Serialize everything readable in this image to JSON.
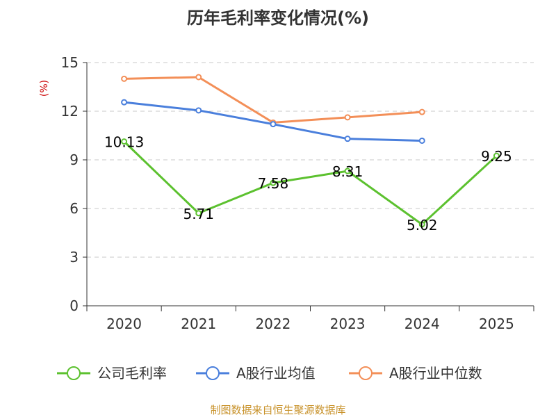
{
  "chart_data": {
    "type": "line",
    "title": "历年毛利率变化情况(%)",
    "unit_label": "(%)",
    "categories": [
      "2020",
      "2021",
      "2022",
      "2023",
      "2024",
      "2025"
    ],
    "yticks": [
      "0",
      "3",
      "6",
      "9",
      "12",
      "15"
    ],
    "ylim": [
      0,
      15
    ],
    "grid": true,
    "legend_placement": "bottom",
    "series": [
      {
        "name": "公司毛利率",
        "color": "#5cc12f",
        "values": [
          10.13,
          5.71,
          7.58,
          8.31,
          5.02,
          9.25
        ],
        "labels": [
          "10.13",
          "5.71",
          "7.58",
          "8.31",
          "5.02",
          "9.25"
        ]
      },
      {
        "name": "A股行业均值",
        "color": "#4a7fdc",
        "values": [
          12.55,
          12.05,
          11.2,
          10.3,
          10.18,
          null
        ]
      },
      {
        "name": "A股行业中位数",
        "color": "#f38f58",
        "values": [
          14.0,
          14.1,
          11.3,
          11.62,
          11.95,
          null
        ]
      }
    ]
  },
  "source": "制图数据来自恒生聚源数据库"
}
